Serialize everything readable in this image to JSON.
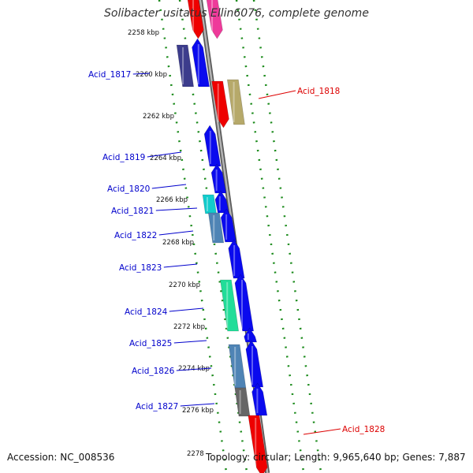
{
  "title": "Solibacter usitatus Ellin6076, complete genome",
  "accession": "Accession: NC_008536",
  "topology": "Topology: circular; Length: 9,965,640 bp; Genes: 7,887",
  "colors": {
    "backbone": "#8c8c8c",
    "ruler": "#1a8a1a",
    "label_left": "#0000cc",
    "label_right": "#dd0000"
  },
  "kbp_labels": [
    "2258 kbp",
    "2260 kbp",
    "2262 kbp",
    "2264 kbp",
    "2266 kbp",
    "2268 kbp",
    "2270 kbp",
    "2272 kbp",
    "2274 kbp",
    "2276 kbp",
    "2278"
  ],
  "left_genes": [
    "Acid_1817",
    "Acid_1819",
    "Acid_1820",
    "Acid_1821",
    "Acid_1822",
    "Acid_1823",
    "Acid_1824",
    "Acid_1825",
    "Acid_1826",
    "Acid_1827"
  ],
  "right_genes": [
    "Acid_1818",
    "Acid_1828"
  ]
}
